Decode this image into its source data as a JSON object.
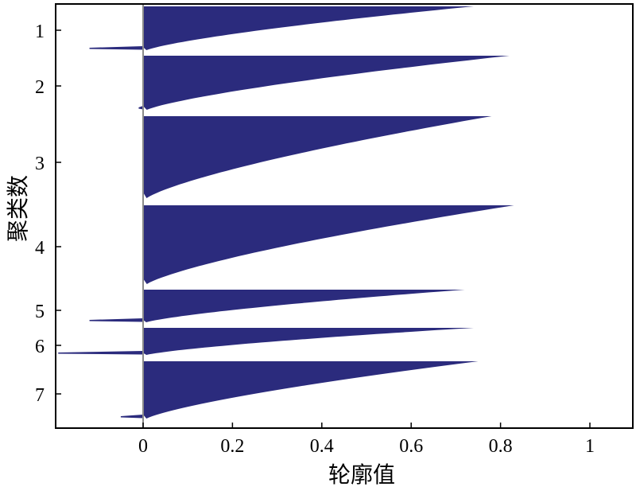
{
  "chart_data": {
    "type": "bar",
    "subtype": "silhouette",
    "title": "",
    "xlabel": "轮廓值",
    "ylabel": "聚类数",
    "xlim": [
      -0.2,
      1.1
    ],
    "xticks": [
      0,
      0.2,
      0.4,
      0.6,
      0.8,
      1
    ],
    "xtick_labels": [
      "0",
      "0.2",
      "0.4",
      "0.6",
      "0.8",
      "1"
    ],
    "grid": false,
    "legend": "none",
    "bar_color": "#2b2b7d",
    "zero_line_color": "#8a8a8a",
    "clusters": [
      {
        "label": "1",
        "max": 0.74,
        "min": -0.12
      },
      {
        "label": "2",
        "max": 0.82,
        "min": -0.01
      },
      {
        "label": "3",
        "max": 0.78,
        "min": 0.0
      },
      {
        "label": "4",
        "max": 0.83,
        "min": 0.0
      },
      {
        "label": "5",
        "max": 0.72,
        "min": -0.12
      },
      {
        "label": "6",
        "max": 0.74,
        "min": -0.19
      },
      {
        "label": "7",
        "max": 0.75,
        "min": -0.05
      }
    ]
  }
}
